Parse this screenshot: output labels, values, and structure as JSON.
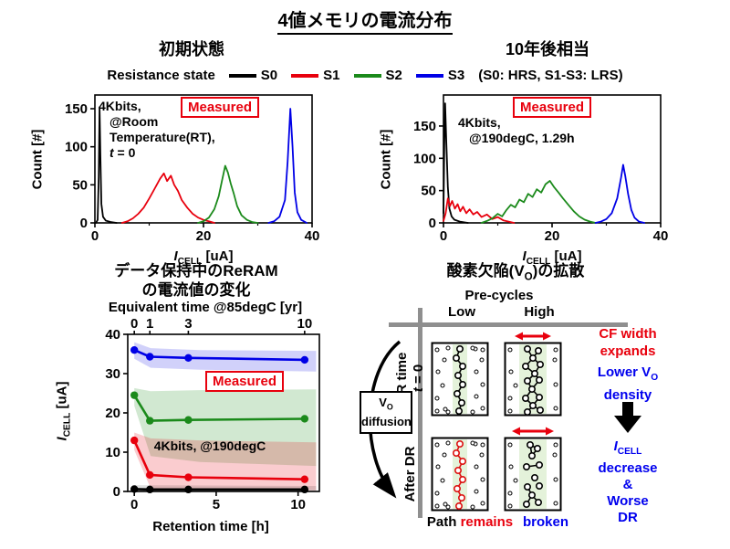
{
  "title": "4値メモリの電流分布",
  "subtitles": {
    "initial": "初期状態",
    "after": "10年後相当"
  },
  "legend": {
    "label": "Resistance state",
    "items": [
      {
        "label": "S0",
        "color": "#000000"
      },
      {
        "label": "S1",
        "color": "#e8000d"
      },
      {
        "label": "S2",
        "color": "#1b8a1b"
      },
      {
        "label": "S3",
        "color": "#0000e6"
      }
    ],
    "note": "(S0: HRS, S1-S3: LRS)"
  },
  "labels": {
    "icell_ua": {
      "pre": "I",
      "sub": "CELL",
      "post": " [uA]"
    },
    "count": "Count [#]",
    "measured": "Measured",
    "retention_title_1": "データ保持中のReRAM",
    "retention_title_2": "の電流値の変化",
    "equiv_axis": "Equivalent time @85degC [yr]",
    "retention_x": "Retention time [h]"
  },
  "chart_data": [
    {
      "id": "hist_initial",
      "type": "line",
      "title": "初期状態",
      "xlabel": "I_CELL [uA]",
      "ylabel": "Count [#]",
      "xlim": [
        0,
        40
      ],
      "ylim": [
        0,
        168
      ],
      "xticks": [
        0,
        20,
        40
      ],
      "xticks_minor": [
        10,
        30
      ],
      "yticks": [
        0,
        50,
        100,
        150
      ],
      "annotations": [
        "4Kbits,",
        "@Room",
        "Temperature(RT),",
        "t = 0"
      ],
      "measured_label": "Measured",
      "series": [
        {
          "name": "S0",
          "color": "#000000",
          "lw": 1.8,
          "points": [
            [
              0.2,
              0
            ],
            [
              0.5,
              4
            ],
            [
              0.7,
              60
            ],
            [
              0.85,
              152
            ],
            [
              1.0,
              90
            ],
            [
              1.2,
              25
            ],
            [
              1.5,
              8
            ],
            [
              2,
              3
            ],
            [
              3,
              1
            ],
            [
              4,
              0
            ]
          ]
        },
        {
          "name": "S1",
          "color": "#e8000d",
          "lw": 1.8,
          "points": [
            [
              5,
              0
            ],
            [
              6,
              2
            ],
            [
              7,
              6
            ],
            [
              8,
              12
            ],
            [
              9,
              20
            ],
            [
              10,
              32
            ],
            [
              11,
              45
            ],
            [
              12,
              58
            ],
            [
              12.7,
              65
            ],
            [
              13.3,
              55
            ],
            [
              14,
              62
            ],
            [
              14.6,
              50
            ],
            [
              15.3,
              42
            ],
            [
              16,
              30
            ],
            [
              17,
              20
            ],
            [
              18,
              12
            ],
            [
              19,
              7
            ],
            [
              20,
              4
            ],
            [
              21,
              2
            ],
            [
              22,
              0
            ]
          ]
        },
        {
          "name": "S2",
          "color": "#1b8a1b",
          "lw": 1.8,
          "points": [
            [
              19,
              0
            ],
            [
              20,
              2
            ],
            [
              21,
              7
            ],
            [
              22,
              18
            ],
            [
              22.8,
              35
            ],
            [
              23.4,
              55
            ],
            [
              24,
              75
            ],
            [
              24.5,
              66
            ],
            [
              25,
              52
            ],
            [
              25.6,
              38
            ],
            [
              26.2,
              22
            ],
            [
              27,
              10
            ],
            [
              28,
              4
            ],
            [
              29,
              1
            ],
            [
              30,
              0
            ]
          ]
        },
        {
          "name": "S3",
          "color": "#0000e6",
          "lw": 1.8,
          "points": [
            [
              32,
              0
            ],
            [
              33,
              2
            ],
            [
              34,
              8
            ],
            [
              35,
              30
            ],
            [
              35.5,
              80
            ],
            [
              36,
              150
            ],
            [
              36.4,
              100
            ],
            [
              36.8,
              40
            ],
            [
              37.3,
              14
            ],
            [
              38,
              4
            ],
            [
              39,
              0
            ]
          ]
        }
      ]
    },
    {
      "id": "hist_after",
      "type": "line",
      "title": "10年後相当",
      "xlabel": "I_CELL [uA]",
      "ylabel": "Count [#]",
      "xlim": [
        0,
        40
      ],
      "ylim": [
        0,
        198
      ],
      "xticks": [
        0,
        20,
        40
      ],
      "xticks_minor": [
        10,
        30
      ],
      "yticks": [
        0,
        50,
        100,
        150
      ],
      "annotations": [
        "4Kbits,",
        "@190degC, 1.29h"
      ],
      "measured_label": "Measured",
      "series": [
        {
          "name": "S0",
          "color": "#000000",
          "lw": 1.8,
          "points": [
            [
              0,
              15
            ],
            [
              0.15,
              120
            ],
            [
              0.3,
              185
            ],
            [
              0.5,
              130
            ],
            [
              0.8,
              55
            ],
            [
              1.1,
              22
            ],
            [
              1.5,
              10
            ],
            [
              2,
              5
            ],
            [
              3,
              2
            ],
            [
              4.5,
              0
            ]
          ]
        },
        {
          "name": "S1",
          "color": "#e8000d",
          "lw": 1.8,
          "points": [
            [
              0,
              3
            ],
            [
              0.4,
              15
            ],
            [
              0.8,
              38
            ],
            [
              1.2,
              26
            ],
            [
              1.6,
              34
            ],
            [
              2.1,
              22
            ],
            [
              2.6,
              29
            ],
            [
              3.1,
              18
            ],
            [
              3.6,
              25
            ],
            [
              4.2,
              15
            ],
            [
              4.8,
              21
            ],
            [
              5.5,
              13
            ],
            [
              6.2,
              17
            ],
            [
              7,
              9
            ],
            [
              8,
              13
            ],
            [
              9,
              6
            ],
            [
              10,
              9
            ],
            [
              11,
              4
            ],
            [
              12,
              2
            ],
            [
              13,
              0
            ]
          ]
        },
        {
          "name": "S2",
          "color": "#1b8a1b",
          "lw": 1.8,
          "points": [
            [
              7,
              0
            ],
            [
              8,
              3
            ],
            [
              9,
              7
            ],
            [
              10,
              14
            ],
            [
              10.8,
              10
            ],
            [
              11.6,
              20
            ],
            [
              12.4,
              28
            ],
            [
              13.2,
              24
            ],
            [
              14,
              36
            ],
            [
              14.8,
              32
            ],
            [
              15.6,
              45
            ],
            [
              16.4,
              40
            ],
            [
              17.2,
              52
            ],
            [
              18,
              47
            ],
            [
              18.8,
              60
            ],
            [
              19.6,
              65
            ],
            [
              20.4,
              55
            ],
            [
              21.2,
              47
            ],
            [
              22,
              38
            ],
            [
              23,
              28
            ],
            [
              24,
              18
            ],
            [
              25,
              10
            ],
            [
              26,
              5
            ],
            [
              27,
              2
            ],
            [
              28,
              0
            ]
          ]
        },
        {
          "name": "S3",
          "color": "#0000e6",
          "lw": 1.8,
          "points": [
            [
              28,
              0
            ],
            [
              29,
              2
            ],
            [
              30,
              6
            ],
            [
              31,
              15
            ],
            [
              32,
              38
            ],
            [
              32.7,
              70
            ],
            [
              33.1,
              90
            ],
            [
              33.5,
              72
            ],
            [
              34,
              45
            ],
            [
              34.6,
              20
            ],
            [
              35.2,
              8
            ],
            [
              36,
              2
            ],
            [
              37,
              0
            ]
          ]
        }
      ]
    },
    {
      "id": "retention",
      "type": "line",
      "title": "データ保持中のReRAMの電流値の変化",
      "xlabel": "Retention time [h]",
      "ylabel": "I_CELL [uA]",
      "top_axis": {
        "label": "Equivalent time @85degC [yr]",
        "ticks": [
          {
            "value": 0,
            "x": 0
          },
          {
            "value": 1,
            "x": 0.95
          },
          {
            "value": 3,
            "x": 3.3
          },
          {
            "value": 10,
            "x": 10.4
          }
        ]
      },
      "xlim": [
        -0.4,
        11.3
      ],
      "ylim": [
        0,
        40
      ],
      "xticks": [
        0,
        5,
        10
      ],
      "yticks": [
        0,
        10,
        20,
        30,
        40
      ],
      "annotations": [
        "4Kbits, @190degC"
      ],
      "measured_label": "Measured",
      "series": [
        {
          "name": "S3",
          "color": "#0000e6",
          "lw": 2.6,
          "markers": true,
          "points": [
            [
              0,
              36
            ],
            [
              0.95,
              34.3
            ],
            [
              3.3,
              34
            ],
            [
              10.4,
              33.5
            ]
          ],
          "band": {
            "op": 0.18,
            "upper": [
              [
                0,
                38
              ],
              [
                1,
                36.5
              ],
              [
                4,
                36
              ],
              [
                11.1,
                35.8
              ]
            ],
            "lower": [
              [
                0,
                33.8
              ],
              [
                1,
                31.5
              ],
              [
                4,
                31
              ],
              [
                11.1,
                30.5
              ]
            ]
          }
        },
        {
          "name": "S2",
          "color": "#1b8a1b",
          "lw": 2.6,
          "markers": true,
          "points": [
            [
              0,
              24.5
            ],
            [
              0.95,
              18
            ],
            [
              3.3,
              18.2
            ],
            [
              10.4,
              18.5
            ]
          ],
          "band": {
            "op": 0.2,
            "upper": [
              [
                0,
                26.3
              ],
              [
                1,
                25.5
              ],
              [
                4,
                25.8
              ],
              [
                11.1,
                26
              ]
            ],
            "lower": [
              [
                0,
                21.8
              ],
              [
                1,
                9
              ],
              [
                4,
                7.5
              ],
              [
                11.1,
                6.5
              ]
            ]
          }
        },
        {
          "name": "S1",
          "color": "#e8000d",
          "lw": 2.6,
          "markers": true,
          "points": [
            [
              0,
              13
            ],
            [
              0.95,
              4.2
            ],
            [
              3.3,
              3.6
            ],
            [
              10.4,
              3.1
            ]
          ],
          "band": {
            "op": 0.2,
            "upper": [
              [
                0,
                15
              ],
              [
                1,
                13.5
              ],
              [
                4,
                13
              ],
              [
                11.1,
                12.5
              ]
            ],
            "lower": [
              [
                0,
                10.5
              ],
              [
                1,
                0.8
              ],
              [
                4,
                0.5
              ],
              [
                11.1,
                0.3
              ]
            ]
          }
        },
        {
          "name": "S0",
          "color": "#000000",
          "lw": 2.6,
          "markers": true,
          "points": [
            [
              0,
              0.6
            ],
            [
              0.95,
              0.5
            ],
            [
              3.3,
              0.5
            ],
            [
              10.4,
              0.5
            ]
          ],
          "band": {
            "op": 0.12,
            "upper": [
              [
                0,
                1.6
              ],
              [
                11.1,
                1.4
              ]
            ],
            "lower": [
              [
                0,
                0
              ],
              [
                11.1,
                0
              ]
            ]
          }
        }
      ]
    }
  ],
  "diagram": {
    "title": {
      "pre": "酸素欠陥(V",
      "sub": "O",
      "post": ")の拡散"
    },
    "precycles": "Pre-cycles",
    "col_low": "Low",
    "col_high": "High",
    "row1": [
      "DR time",
      "t = 0"
    ],
    "row2": "After DR",
    "vo_box": {
      "pre": "V",
      "sub": "O",
      "line2": "diffusion"
    },
    "cf_note": [
      "CF width",
      "expands"
    ],
    "lower_note": {
      "line1": {
        "pre": "Lower V",
        "sub": "O"
      },
      "line2": "density"
    },
    "icell_note": {
      "line1": {
        "pre": "I",
        "sub": "CELL"
      },
      "lines": [
        "decrease",
        "&",
        "Worse",
        "DR"
      ]
    },
    "path_word": "Path",
    "remains_word": "remains",
    "broken_word": "broken",
    "cells": [
      {
        "band": "narrow",
        "path": "chain",
        "path_color": "#000000"
      },
      {
        "band": "wide",
        "path": "network",
        "path_color": "#000000"
      },
      {
        "band": "narrow",
        "path": "chain",
        "path_color": "#dd1111"
      },
      {
        "band": "wide",
        "path": "broken",
        "path_color": "#000000"
      }
    ]
  }
}
